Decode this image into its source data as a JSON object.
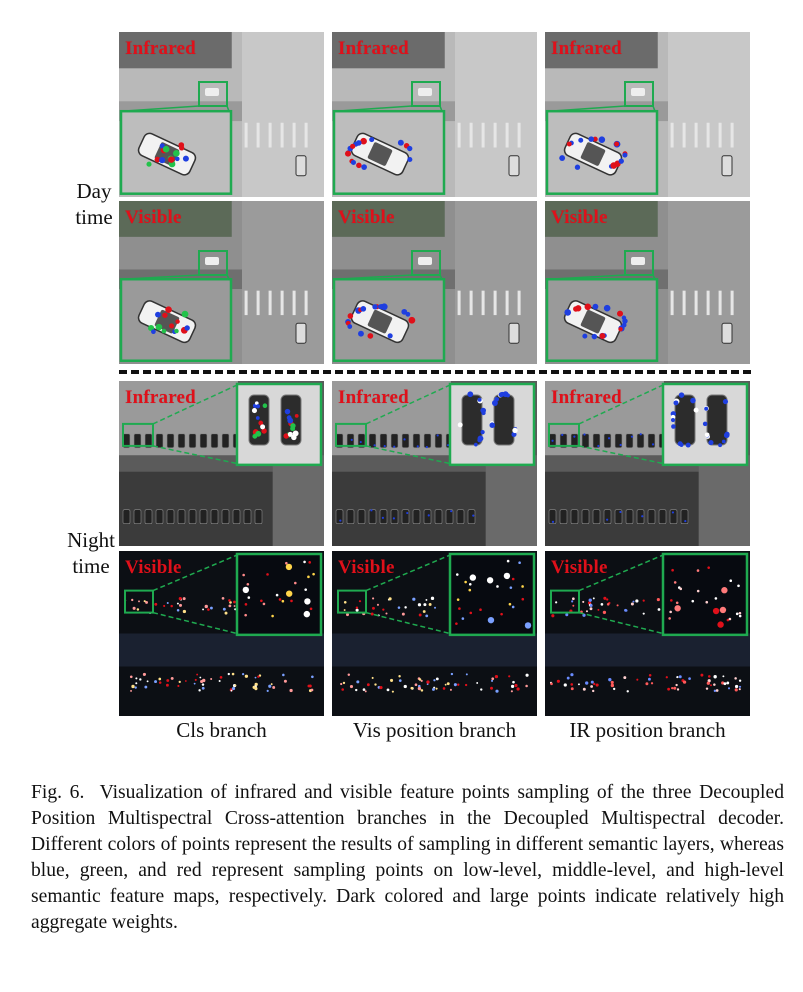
{
  "figure": {
    "row_labels": {
      "day": [
        "Day",
        "time"
      ],
      "night": [
        "Night",
        "time"
      ]
    },
    "columns": [
      "Cls branch",
      "Vis position branch",
      "IR position branch"
    ],
    "panels": {
      "day_infrared": "Infrared",
      "day_visible": "Visible",
      "night_infrared": "Infrared",
      "night_visible": "Visible"
    },
    "point_colors": {
      "low_level": "#1f3fe0",
      "middle_level": "#22c24a",
      "high_level": "#e0101a"
    },
    "inset_border_color": "#1faa50"
  },
  "caption": {
    "number": "Fig. 6.",
    "text": "Visualization of infrared and visible feature points sampling of the three Decoupled Position Multispectral Cross-attention branches in the Decoupled Multispectral decoder. Different colors of points represent the results of sampling in different semantic layers, whereas blue, green, and red represent sampling points on low-level, middle-level, and high-level semantic feature maps, respectively. Dark colored and large points indicate relatively high aggregate weights."
  }
}
